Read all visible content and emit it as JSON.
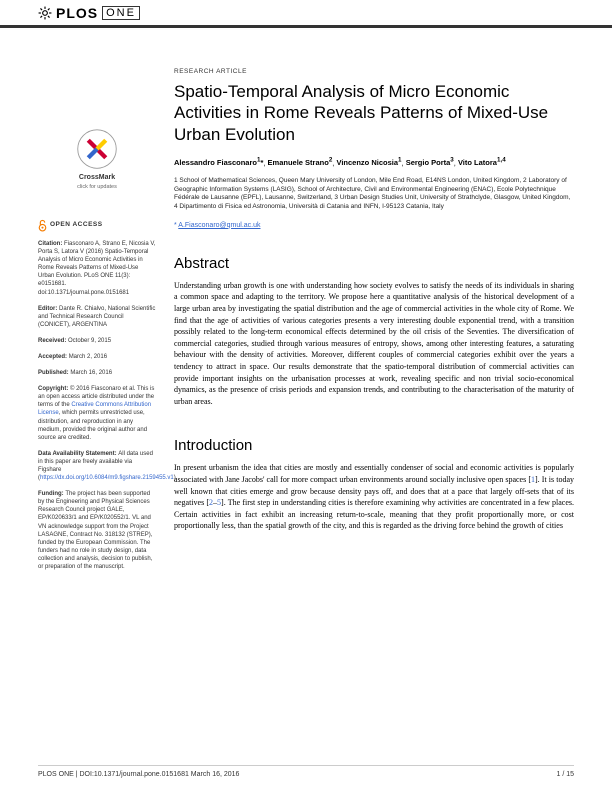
{
  "journal": {
    "publisher": "PLOS",
    "name": "ONE"
  },
  "article": {
    "type": "RESEARCH ARTICLE",
    "title": "Spatio-Temporal Analysis of Micro Economic Activities in Rome Reveals Patterns of Mixed-Use Urban Evolution",
    "authors_html": "Alessandro Fiasconaro<sup>1</sup>*, Emanuele Strano<sup>2</sup>, Vincenzo Nicosia<sup>1</sup>, Sergio Porta<sup>3</sup>, Vito Latora<sup>1,4</sup>",
    "affiliations": "1 School of Mathematical Sciences, Queen Mary University of London, Mile End Road, E14NS London, United Kingdom, 2 Laboratory of Geographic Information Systems (LASIG), School of Architecture, Civil and Environmental Engineering (ENAC), Ecole Polytechnique Fédérale de Lausanne (EPFL), Lausanne, Switzerland, 3 Urban Design Studies Unit, University of Strathclyde, Glasgow, United Kingdom, 4 Dipartimento di Fisica ed Astronomia, Università di Catania and INFN, I-95123 Catania, Italy",
    "correspondence_email": "A.Fiasconaro@qmul.ac.uk"
  },
  "crossmark_label": "click for updates",
  "open_access_label": "OPEN ACCESS",
  "sidebar": {
    "citation": "Fiasconaro A, Strano E, Nicosia V, Porta S, Latora V (2016) Spatio-Temporal Analysis of Micro Economic Activities in Rome Reveals Patterns of Mixed-Use Urban Evolution. PLoS ONE 11(3): e0151681. doi:10.1371/journal.pone.0151681",
    "editor": "Dante R. Chialvo, National Scientific and Technical Research Council (CONICET), ARGENTINA",
    "received": "October 9, 2015",
    "accepted": "March 2, 2016",
    "published": "March 16, 2016",
    "copyright": "© 2016 Fiasconaro et al. This is an open access article distributed under the terms of the ",
    "cc_link": "Creative Commons Attribution License",
    "copyright_tail": ", which permits unrestricted use, distribution, and reproduction in any medium, provided the original author and source are credited.",
    "data_availability": "All data used in this paper are freely available via Figshare (",
    "data_link": "https://dx.doi.org/10.6084/m9.figshare.2159455.v1",
    "data_tail": ").",
    "funding": "The project has been supported by the Engineering and Physical Sciences Research Council project GALE, EP/K020633/1 and EP/K020552/1. VL and VN acknowledge support from the Project LASAGNE, Contract No. 318132 (STREP), funded by the European Commission. The funders had no role in study design, data collection and analysis, decision to publish, or preparation of the manuscript."
  },
  "abstract": {
    "heading": "Abstract",
    "body": "Understanding urban growth is one with understanding how society evolves to satisfy the needs of its individuals in sharing a common space and adapting to the territory. We propose here a quantitative analysis of the historical development of a large urban area by investigating the spatial distribution and the age of commercial activities in the whole city of Rome. We find that the age of activities of various categories presents a very interesting double exponential trend, with a transition possibly related to the long-term economical effects determined by the oil crisis of the Seventies. The diversification of commercial categories, studied through various measures of entropy, shows, among other interesting features, a saturating behaviour with the density of activities. Moreover, different couples of commercial categories exhibit over the years a tendency to attract in space. Our results demonstrate that the spatio-temporal distribution of commercial activities can provide important insights on the urbanisation processes at work, revealing specific and non trivial socio-economical dynamics, as the presence of crisis periods and expansion trends, and contributing to the characterisation of the maturity of urban areas."
  },
  "introduction": {
    "heading": "Introduction",
    "body_html": "In present urbanism the idea that cities are mostly and essentially condenser of social and economic activities is popularly associated with Jane Jacobs' call for more compact urban environments around socially inclusive open spaces [<span class='ref'>1</span>]. It is today well known that cities emerge and grow because density pays off, and does that at a pace that largely off-sets that of its negatives [<span class='ref'>2</span>–<span class='ref'>5</span>]. The first step in understanding cities is therefore examining why activities are concentrated in a few places. Certain activities in fact exhibit an increasing return-to-scale, meaning that they profit proportionally more, or cost proportionally less, than the spatial growth of the city, and this is regarded as the driving force behind the growth of cities"
  },
  "footer": {
    "left": "PLOS ONE | DOI:10.1371/journal.pone.0151681   March 16, 2016",
    "right": "1 / 15"
  },
  "colors": {
    "link": "#3366cc",
    "rule": "#333333",
    "crossmark_red": "#cc0033",
    "crossmark_yellow": "#ffcc00",
    "crossmark_blue": "#3366cc",
    "oa_orange": "#f57c00"
  }
}
